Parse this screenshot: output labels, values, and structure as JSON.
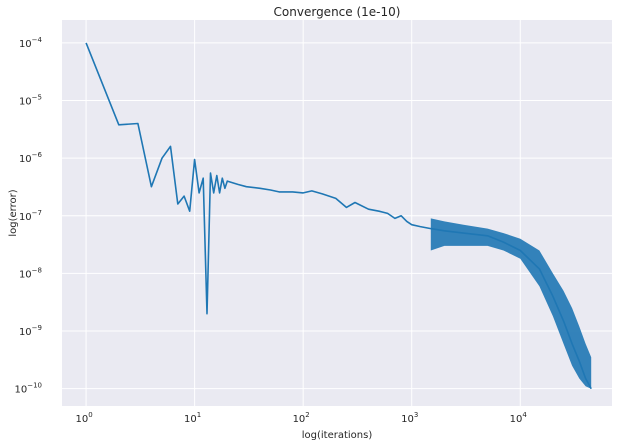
{
  "chart_data": {
    "type": "line",
    "title": "Convergence (1e-10)",
    "xlabel": "log(iterations)",
    "ylabel": "log(error)",
    "x_scale": "log",
    "y_scale": "log",
    "xlim": [
      0.6,
      70000
    ],
    "ylim": [
      5e-11,
      0.00025
    ],
    "grid": true,
    "colors": {
      "background": "#eaeaf2",
      "grid": "#ffffff",
      "line": "#1f77b4"
    },
    "x_ticks": [
      {
        "value": 1,
        "base": "10",
        "exp": "0"
      },
      {
        "value": 10,
        "base": "10",
        "exp": "1"
      },
      {
        "value": 100,
        "base": "10",
        "exp": "2"
      },
      {
        "value": 1000,
        "base": "10",
        "exp": "3"
      },
      {
        "value": 10000,
        "base": "10",
        "exp": "4"
      }
    ],
    "y_ticks": [
      {
        "value": 1e-10,
        "base": "10",
        "exp": "−10"
      },
      {
        "value": 1e-09,
        "base": "10",
        "exp": "−9"
      },
      {
        "value": 1e-08,
        "base": "10",
        "exp": "−8"
      },
      {
        "value": 1e-07,
        "base": "10",
        "exp": "−7"
      },
      {
        "value": 1e-06,
        "base": "10",
        "exp": "−6"
      },
      {
        "value": 1e-05,
        "base": "10",
        "exp": "−5"
      },
      {
        "value": 0.0001,
        "base": "10",
        "exp": "−4"
      }
    ],
    "series": [
      {
        "x": [
          1,
          2,
          3,
          4,
          5,
          6,
          7,
          8,
          9,
          10,
          11,
          12,
          13,
          14,
          15,
          16,
          17,
          18,
          19,
          20,
          25,
          30,
          40,
          50,
          60,
          80,
          100,
          120,
          150,
          200,
          250,
          300,
          400,
          500,
          600,
          700,
          800,
          900,
          1000,
          1200,
          1500,
          2000,
          3000,
          5000,
          7000,
          10000,
          15000,
          20000,
          25000,
          30000,
          35000,
          40000,
          45000
        ],
        "y": [
          0.0001,
          3.8e-06,
          4e-06,
          3.2e-07,
          1e-06,
          1.6e-06,
          1.6e-07,
          2.2e-07,
          1.2e-07,
          9.5e-07,
          2.5e-07,
          4.5e-07,
          2e-09,
          5.5e-07,
          2.5e-07,
          5e-07,
          2.5e-07,
          4.5e-07,
          3e-07,
          4e-07,
          3.5e-07,
          3.2e-07,
          3e-07,
          2.8e-07,
          2.6e-07,
          2.6e-07,
          2.5e-07,
          2.7e-07,
          2.4e-07,
          2e-07,
          1.4e-07,
          1.7e-07,
          1.3e-07,
          1.2e-07,
          1.1e-07,
          9e-08,
          1e-07,
          8e-08,
          7e-08,
          6.5e-08,
          6e-08,
          5.5e-08,
          5e-08,
          4.5e-08,
          3.5e-08,
          2.5e-08,
          1.2e-08,
          4e-09,
          1.5e-09,
          6e-10,
          3e-10,
          1.5e-10,
          1e-10
        ]
      }
    ],
    "envelope": {
      "x": [
        1500,
        2000,
        3000,
        5000,
        7000,
        10000,
        15000,
        20000,
        25000,
        30000,
        35000,
        40000,
        45000
      ],
      "upper": [
        9e-08,
        8e-08,
        7e-08,
        6e-08,
        5e-08,
        4e-08,
        2.5e-08,
        1e-08,
        5e-09,
        2.5e-09,
        1.2e-09,
        6e-10,
        3.5e-10
      ],
      "lower": [
        2.5e-08,
        3e-08,
        3e-08,
        3e-08,
        2.5e-08,
        1.8e-08,
        6e-09,
        1.8e-09,
        6e-10,
        2.5e-10,
        1.5e-10,
        1.1e-10,
        1e-10
      ]
    }
  }
}
